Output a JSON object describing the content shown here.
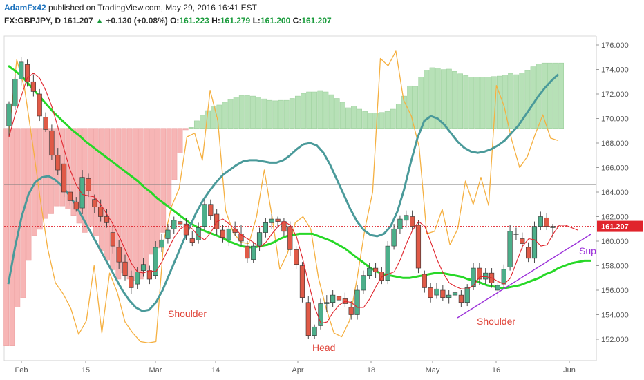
{
  "header": {
    "author": "AdamFx42",
    "published_text": "published on TradingView.com, May 29, 2016 16:41 EST",
    "symbol": "FX:GBPJPY, D",
    "last": "161.207",
    "change": "+0.130 (+0.08%)",
    "o_label": "O:",
    "o_value": "161.223",
    "h_label": "H:",
    "h_value": "161.279",
    "l_label": "L:",
    "l_value": "161.200",
    "c_label": "C:",
    "c_value": "161.207"
  },
  "colors": {
    "up_candle": "#4caf8a",
    "down_candle": "#e05a47",
    "ma_green": "#27d827",
    "ma_teal": "#4a9a9a",
    "oscillator_orange": "#f5b041",
    "red_line": "#e0242c",
    "hist_neg": "#f7b5b5",
    "hist_pos": "#b7e1b7",
    "price_label_bg": "#e0242c",
    "support_line": "#9b30d9"
  },
  "chart_data": {
    "type": "candlestick",
    "price_scale": {
      "min": 151,
      "max": 177,
      "ticks": [
        152,
        154,
        156,
        158,
        160,
        162,
        164,
        166,
        168,
        170,
        172,
        174,
        176
      ]
    },
    "x_ticks": [
      "Feb",
      "15",
      "Mar",
      "14",
      "Apr",
      "18",
      "May",
      "16",
      "Jun"
    ],
    "last_price_label": "161.207",
    "candles": [
      {
        "o": 169.4,
        "h": 171.4,
        "l": 168.5,
        "c": 171.2
      },
      {
        "o": 171.0,
        "h": 173.6,
        "l": 170.7,
        "c": 173.2
      },
      {
        "o": 173.2,
        "h": 175.0,
        "l": 172.7,
        "c": 174.6
      },
      {
        "o": 174.4,
        "h": 174.8,
        "l": 172.6,
        "c": 173.0
      },
      {
        "o": 173.0,
        "h": 173.6,
        "l": 171.8,
        "c": 172.2
      },
      {
        "o": 172.0,
        "h": 172.4,
        "l": 169.8,
        "c": 170.2
      },
      {
        "o": 170.1,
        "h": 170.5,
        "l": 168.9,
        "c": 169.1
      },
      {
        "o": 169.0,
        "h": 169.5,
        "l": 166.6,
        "c": 167.0
      },
      {
        "o": 167.0,
        "h": 167.6,
        "l": 165.4,
        "c": 165.8
      },
      {
        "o": 166.3,
        "h": 167.2,
        "l": 163.6,
        "c": 164.0
      },
      {
        "o": 164.0,
        "h": 164.6,
        "l": 162.9,
        "c": 163.3
      },
      {
        "o": 163.2,
        "h": 163.6,
        "l": 162.4,
        "c": 162.6
      },
      {
        "o": 162.7,
        "h": 165.8,
        "l": 162.2,
        "c": 165.2
      },
      {
        "o": 165.1,
        "h": 165.5,
        "l": 163.6,
        "c": 164.1
      },
      {
        "o": 163.4,
        "h": 163.8,
        "l": 162.3,
        "c": 162.8
      },
      {
        "o": 162.8,
        "h": 163.4,
        "l": 161.6,
        "c": 162.0
      },
      {
        "o": 162.0,
        "h": 162.6,
        "l": 161.1,
        "c": 161.5
      },
      {
        "o": 160.7,
        "h": 161.3,
        "l": 159.0,
        "c": 159.6
      },
      {
        "o": 159.5,
        "h": 160.1,
        "l": 157.7,
        "c": 158.3
      },
      {
        "o": 158.3,
        "h": 158.9,
        "l": 156.8,
        "c": 157.2
      },
      {
        "o": 157.1,
        "h": 157.6,
        "l": 155.7,
        "c": 156.2
      },
      {
        "o": 156.5,
        "h": 157.9,
        "l": 156.1,
        "c": 157.5
      },
      {
        "o": 157.6,
        "h": 158.6,
        "l": 157.1,
        "c": 158.1
      },
      {
        "o": 157.6,
        "h": 158.0,
        "l": 156.5,
        "c": 156.9
      },
      {
        "o": 157.2,
        "h": 160.0,
        "l": 156.9,
        "c": 159.5
      },
      {
        "o": 159.5,
        "h": 160.6,
        "l": 159.1,
        "c": 160.1
      },
      {
        "o": 160.2,
        "h": 161.4,
        "l": 159.8,
        "c": 160.9
      },
      {
        "o": 161.0,
        "h": 162.0,
        "l": 160.6,
        "c": 161.7
      },
      {
        "o": 161.6,
        "h": 162.3,
        "l": 161.1,
        "c": 161.4
      },
      {
        "o": 161.4,
        "h": 161.9,
        "l": 160.1,
        "c": 160.5
      },
      {
        "o": 160.2,
        "h": 160.8,
        "l": 159.6,
        "c": 159.9
      },
      {
        "o": 160.1,
        "h": 161.5,
        "l": 159.8,
        "c": 161.1
      },
      {
        "o": 161.2,
        "h": 163.4,
        "l": 160.9,
        "c": 163.0
      },
      {
        "o": 163.0,
        "h": 163.4,
        "l": 161.7,
        "c": 162.1
      },
      {
        "o": 162.2,
        "h": 162.6,
        "l": 160.5,
        "c": 161.0
      },
      {
        "o": 160.9,
        "h": 161.3,
        "l": 159.9,
        "c": 160.3
      },
      {
        "o": 160.1,
        "h": 161.3,
        "l": 159.6,
        "c": 161.0
      },
      {
        "o": 161.0,
        "h": 161.6,
        "l": 160.4,
        "c": 160.7
      },
      {
        "o": 160.6,
        "h": 161.3,
        "l": 159.6,
        "c": 160.0
      },
      {
        "o": 159.6,
        "h": 160.0,
        "l": 158.2,
        "c": 158.6
      },
      {
        "o": 158.5,
        "h": 159.9,
        "l": 158.2,
        "c": 159.6
      },
      {
        "o": 159.6,
        "h": 161.1,
        "l": 159.2,
        "c": 160.7
      },
      {
        "o": 160.7,
        "h": 161.9,
        "l": 160.3,
        "c": 161.5
      },
      {
        "o": 161.5,
        "h": 162.2,
        "l": 161.0,
        "c": 161.8
      },
      {
        "o": 161.8,
        "h": 162.0,
        "l": 161.1,
        "c": 161.6
      },
      {
        "o": 161.6,
        "h": 161.9,
        "l": 160.4,
        "c": 160.8
      },
      {
        "o": 161.2,
        "h": 161.6,
        "l": 158.8,
        "c": 159.3
      },
      {
        "o": 159.3,
        "h": 159.6,
        "l": 157.7,
        "c": 158.1
      },
      {
        "o": 158.0,
        "h": 158.3,
        "l": 155.0,
        "c": 155.4
      },
      {
        "o": 155.0,
        "h": 155.5,
        "l": 152.0,
        "c": 152.3
      },
      {
        "o": 152.3,
        "h": 153.2,
        "l": 152.0,
        "c": 153.0
      },
      {
        "o": 153.1,
        "h": 155.3,
        "l": 152.8,
        "c": 154.9
      },
      {
        "o": 154.9,
        "h": 155.6,
        "l": 154.2,
        "c": 155.0
      },
      {
        "o": 155.0,
        "h": 156.0,
        "l": 154.6,
        "c": 155.6
      },
      {
        "o": 155.5,
        "h": 156.0,
        "l": 154.9,
        "c": 155.2
      },
      {
        "o": 155.3,
        "h": 155.8,
        "l": 154.6,
        "c": 154.9
      },
      {
        "o": 154.6,
        "h": 155.1,
        "l": 153.6,
        "c": 154.0
      },
      {
        "o": 154.0,
        "h": 156.4,
        "l": 153.6,
        "c": 156.0
      },
      {
        "o": 156.0,
        "h": 157.6,
        "l": 155.7,
        "c": 157.2
      },
      {
        "o": 157.2,
        "h": 158.2,
        "l": 156.9,
        "c": 157.8
      },
      {
        "o": 157.8,
        "h": 158.2,
        "l": 157.0,
        "c": 157.5
      },
      {
        "o": 157.5,
        "h": 157.9,
        "l": 156.5,
        "c": 156.8
      },
      {
        "o": 156.8,
        "h": 160.0,
        "l": 156.5,
        "c": 159.6
      },
      {
        "o": 159.6,
        "h": 161.4,
        "l": 159.3,
        "c": 161.0
      },
      {
        "o": 161.0,
        "h": 162.1,
        "l": 160.6,
        "c": 161.8
      },
      {
        "o": 161.7,
        "h": 162.5,
        "l": 161.1,
        "c": 162.1
      },
      {
        "o": 162.0,
        "h": 162.5,
        "l": 160.9,
        "c": 161.2
      },
      {
        "o": 161.3,
        "h": 161.7,
        "l": 157.4,
        "c": 157.8
      },
      {
        "o": 157.3,
        "h": 157.6,
        "l": 155.8,
        "c": 156.2
      },
      {
        "o": 156.2,
        "h": 156.6,
        "l": 155.0,
        "c": 155.4
      },
      {
        "o": 155.6,
        "h": 156.6,
        "l": 155.3,
        "c": 156.1
      },
      {
        "o": 156.0,
        "h": 156.4,
        "l": 155.1,
        "c": 155.4
      },
      {
        "o": 155.4,
        "h": 156.0,
        "l": 154.9,
        "c": 155.6
      },
      {
        "o": 155.6,
        "h": 156.2,
        "l": 155.3,
        "c": 155.8
      },
      {
        "o": 155.6,
        "h": 156.0,
        "l": 154.6,
        "c": 155.0
      },
      {
        "o": 155.0,
        "h": 156.5,
        "l": 154.7,
        "c": 156.2
      },
      {
        "o": 156.3,
        "h": 158.2,
        "l": 156.0,
        "c": 157.8
      },
      {
        "o": 157.8,
        "h": 158.2,
        "l": 156.4,
        "c": 156.9
      },
      {
        "o": 156.9,
        "h": 157.8,
        "l": 156.5,
        "c": 157.4
      },
      {
        "o": 157.4,
        "h": 157.8,
        "l": 156.2,
        "c": 156.6
      },
      {
        "o": 156.0,
        "h": 156.7,
        "l": 155.4,
        "c": 156.4
      },
      {
        "o": 156.5,
        "h": 158.1,
        "l": 156.2,
        "c": 157.7
      },
      {
        "o": 157.9,
        "h": 161.3,
        "l": 157.6,
        "c": 160.8
      },
      {
        "o": 160.6,
        "h": 161.1,
        "l": 160.1,
        "c": 160.6
      },
      {
        "o": 160.2,
        "h": 160.7,
        "l": 159.4,
        "c": 159.8
      },
      {
        "o": 159.5,
        "h": 159.9,
        "l": 158.3,
        "c": 158.6
      },
      {
        "o": 158.6,
        "h": 161.6,
        "l": 158.2,
        "c": 161.2
      },
      {
        "o": 161.2,
        "h": 162.4,
        "l": 160.9,
        "c": 162.0
      },
      {
        "o": 161.9,
        "h": 162.3,
        "l": 160.9,
        "c": 161.2
      },
      {
        "o": 161.1,
        "h": 161.4,
        "l": 160.3,
        "c": 161.2
      }
    ],
    "series": [
      {
        "kind": "ma_green",
        "values": [
          174.3,
          173.9,
          173.5,
          172.9,
          172.3,
          171.7,
          171.1,
          170.5,
          170.0,
          169.5,
          169.0,
          168.6,
          168.1,
          167.7,
          167.3,
          166.9,
          166.5,
          166.1,
          165.7,
          165.3,
          164.9,
          164.4,
          164.0,
          163.5,
          163.1,
          162.7,
          162.3,
          161.9,
          161.5,
          161.2,
          160.9,
          160.7,
          160.5,
          160.3,
          160.0,
          159.8,
          159.6,
          159.5,
          159.5,
          159.6,
          159.7,
          159.9,
          160.2,
          160.4,
          160.5,
          160.6,
          160.6,
          160.6,
          160.4,
          160.2,
          160.0,
          159.7,
          159.4,
          159.0,
          158.6,
          158.2,
          157.8,
          157.5,
          157.3,
          157.2,
          157.1,
          157.0,
          157.0,
          157.1,
          157.2,
          157.3,
          157.4,
          157.4,
          157.3,
          157.2,
          157.1,
          156.9,
          156.8,
          156.6,
          156.4,
          156.3,
          156.2,
          156.2,
          156.3,
          156.4,
          156.6,
          156.8,
          157.0,
          157.3,
          157.5,
          157.8,
          158.0,
          158.2,
          158.3,
          158.4,
          158.4
        ]
      },
      {
        "kind": "ma_teal",
        "values": [
          156.5,
          159.5,
          162.0,
          163.8,
          164.8,
          165.2,
          165.3,
          165.0,
          164.5,
          163.8,
          163.0,
          162.0,
          161.0,
          160.0,
          159.0,
          158.0,
          157.0,
          156.0,
          155.2,
          154.6,
          154.3,
          154.4,
          155.0,
          156.0,
          157.3,
          158.6,
          159.9,
          161.1,
          162.3,
          163.3,
          164.1,
          164.8,
          165.4,
          165.8,
          166.2,
          166.5,
          166.6,
          166.6,
          166.5,
          166.4,
          166.4,
          166.6,
          167.0,
          167.5,
          167.9,
          168.0,
          167.8,
          167.2,
          166.2,
          165.0,
          163.8,
          162.6,
          161.6,
          160.9,
          160.5,
          160.4,
          160.6,
          161.2,
          162.4,
          164.2,
          166.4,
          168.4,
          169.8,
          170.2,
          170.0,
          169.5,
          168.8,
          168.1,
          167.6,
          167.3,
          167.2,
          167.3,
          167.5,
          167.8,
          168.2,
          168.8,
          169.4,
          170.2,
          171.0,
          171.8,
          172.5,
          173.1,
          173.6
        ]
      },
      {
        "kind": "red_line",
        "values": [
          168.5,
          170.3,
          171.8,
          173.3,
          173.7,
          173.3,
          172.3,
          171.0,
          169.3,
          167.5,
          165.8,
          164.6,
          163.8,
          163.7,
          163.6,
          163.0,
          162.2,
          161.4,
          160.4,
          159.3,
          158.2,
          157.5,
          157.4,
          157.6,
          157.5,
          158.3,
          159.3,
          160.3,
          161.0,
          161.3,
          161.0,
          160.4,
          160.1,
          160.7,
          161.6,
          161.8,
          161.4,
          161.0,
          160.5,
          160.2,
          159.9,
          159.5,
          159.9,
          160.6,
          161.2,
          161.6,
          161.3,
          160.4,
          158.6,
          156.6,
          154.6,
          153.3,
          153.4,
          154.2,
          154.8,
          155.1,
          155.0,
          154.6,
          154.6,
          155.3,
          156.3,
          157.1,
          157.3,
          157.5,
          158.5,
          159.8,
          160.9,
          161.6,
          161.2,
          159.9,
          158.5,
          157.4,
          156.6,
          156.3,
          156.1,
          156.1,
          156.4,
          157.1,
          157.1,
          157.0,
          156.7,
          156.5,
          157.0,
          158.3,
          159.6,
          160.2,
          160.1,
          159.6,
          159.7,
          160.6,
          161.3,
          161.3,
          161.1,
          160.9
        ]
      },
      {
        "kind": "oscillator_orange",
        "values": [
          168.8,
          174.8,
          172.5,
          168.2,
          163.6,
          159.4,
          156.6,
          155.7,
          154.5,
          152.4,
          153.5,
          158.0,
          152.5,
          157.4,
          155.8,
          153.4,
          152.5,
          151.8,
          151.7,
          151.8,
          160.0,
          162.8,
          164.3,
          168.5,
          168.8,
          166.6,
          172.3,
          169.8,
          162.5,
          160.7,
          159.9,
          159.8,
          162.0,
          165.8,
          162.0,
          157.7,
          159.0,
          161.5,
          162.0,
          161.0,
          157.0,
          154.5,
          152.5,
          152.2,
          153.5,
          157.0,
          161.0,
          164.0,
          174.9,
          174.3,
          175.5,
          171.5,
          170.2,
          167.7,
          160.6,
          160.8,
          162.6,
          159.7,
          161.0,
          164.9,
          163.0,
          165.2,
          162.9,
          172.7,
          171.0,
          168.2,
          166.0,
          166.9,
          168.7,
          170.3,
          168.4,
          168.2
        ]
      },
      {
        "kind": "histogram_zero",
        "value": 169.2
      }
    ]
  },
  "annotations": {
    "shoulder_left": "Shoulder",
    "head": "Head",
    "shoulder_right": "Shoulder",
    "support": "Support"
  }
}
